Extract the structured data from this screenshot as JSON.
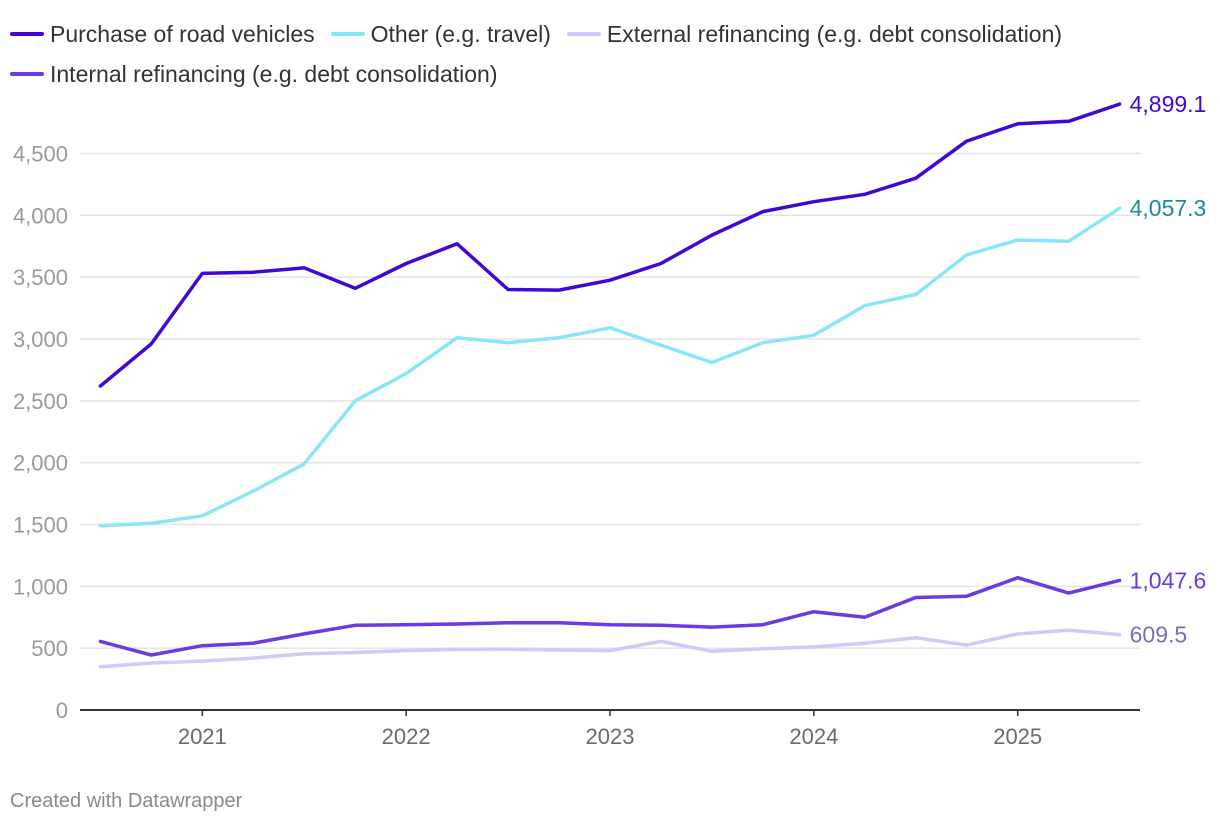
{
  "colors": {
    "purchase": "#4207d4",
    "other": "#8ae6f7",
    "external": "#d4c7fa",
    "internal": "#6c39e3",
    "label_purchase": "#4207d4",
    "label_other": "#1b8a9a",
    "label_external": "#7d6fb3",
    "label_internal": "#6c39e3",
    "grid": "#e4e4e4",
    "tick": "#9a9a9a",
    "axis": "#333333"
  },
  "legend": {
    "rows": [
      [
        {
          "label": "Purchase of road vehicles",
          "color_key": "purchase"
        },
        {
          "label": "Other (e.g. travel)",
          "color_key": "other"
        },
        {
          "label": "External refinancing (e.g. debt consolidation)",
          "color_key": "external"
        }
      ],
      [
        {
          "label": "Internal refinancing (e.g. debt consolidation)",
          "color_key": "internal"
        }
      ]
    ]
  },
  "chart_data": {
    "type": "line",
    "title": "",
    "xlabel": "",
    "ylabel": "",
    "ylim": [
      0,
      4900
    ],
    "yticks": [
      0,
      500,
      1000,
      1500,
      2000,
      2500,
      3000,
      3500,
      4000,
      4500
    ],
    "ytick_labels": [
      "0",
      "500",
      "1,000",
      "1,500",
      "2,000",
      "2,500",
      "3,000",
      "3,500",
      "4,000",
      "4,500"
    ],
    "xlim": [
      2020.4,
      2025.6
    ],
    "xticks": [
      2021,
      2022,
      2023,
      2024,
      2025
    ],
    "xtick_labels": [
      "2021",
      "2022",
      "2023",
      "2024",
      "2025"
    ],
    "x": [
      2020.5,
      2020.75,
      2021.0,
      2021.25,
      2021.5,
      2021.75,
      2022.0,
      2022.25,
      2022.5,
      2022.75,
      2023.0,
      2023.25,
      2023.5,
      2023.75,
      2024.0,
      2024.25,
      2024.5,
      2024.75,
      2025.0,
      2025.25,
      2025.5
    ],
    "series": [
      {
        "name": "Purchase of road vehicles",
        "color_key": "purchase",
        "label_color_key": "label_purchase",
        "end_label": "4,899.1",
        "values": [
          2620,
          2960,
          3530,
          3540,
          3575,
          3410,
          3610,
          3770,
          3400,
          3395,
          3475,
          3610,
          3840,
          4030,
          4110,
          4170,
          4300,
          4600,
          4740,
          4760,
          4899.1
        ]
      },
      {
        "name": "Other (e.g. travel)",
        "color_key": "other",
        "label_color_key": "label_other",
        "end_label": "4,057.3",
        "values": [
          1490,
          1510,
          1570,
          1770,
          1990,
          2500,
          2720,
          3010,
          2970,
          3010,
          3090,
          2950,
          2810,
          2970,
          3030,
          3270,
          3360,
          3680,
          3800,
          3790,
          4057.3
        ]
      },
      {
        "name": "External refinancing (e.g. debt consolidation)",
        "color_key": "external",
        "label_color_key": "label_external",
        "end_label": "609.5",
        "values": [
          350,
          380,
          395,
          420,
          455,
          465,
          480,
          490,
          492,
          485,
          480,
          555,
          475,
          495,
          510,
          540,
          585,
          525,
          615,
          645,
          609.5
        ]
      },
      {
        "name": "Internal refinancing (e.g. debt consolidation)",
        "color_key": "internal",
        "label_color_key": "label_internal",
        "end_label": "1,047.6",
        "values": [
          555,
          445,
          520,
          540,
          615,
          685,
          690,
          695,
          705,
          705,
          690,
          685,
          670,
          690,
          795,
          750,
          910,
          920,
          1070,
          945,
          1047.6
        ]
      }
    ]
  },
  "footer": {
    "credit": "Created with Datawrapper"
  }
}
